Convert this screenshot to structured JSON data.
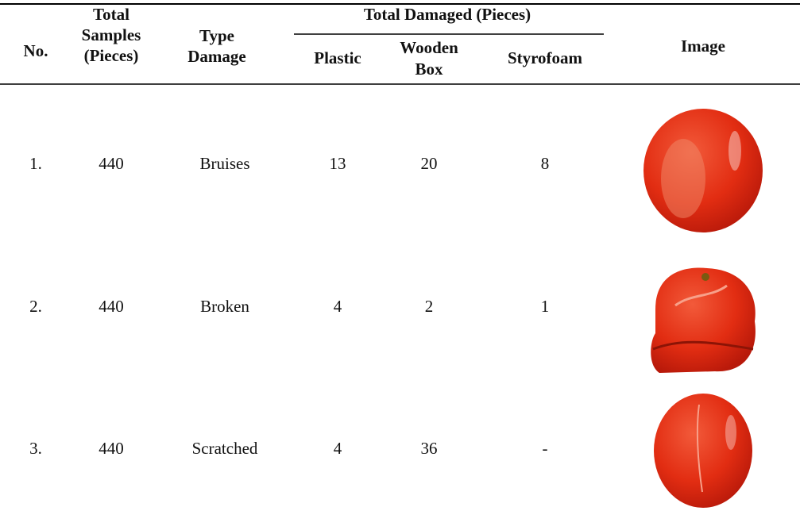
{
  "table": {
    "header": {
      "no": "No.",
      "total_samples": [
        "Total",
        "Samples",
        "(Pieces)"
      ],
      "type_damage": [
        "Type",
        "Damage"
      ],
      "total_damaged": "Total Damaged (Pieces)",
      "plastic": "Plastic",
      "wooden_box": [
        "Wooden",
        "Box"
      ],
      "styrofoam": "Styrofoam",
      "image": "Image"
    },
    "rows": [
      [
        "1.",
        "440",
        "Bruises",
        "13",
        "20",
        "8"
      ],
      [
        "2.",
        "440",
        "Broken",
        "4",
        "2",
        "1"
      ],
      [
        "3.",
        "440",
        "Scratched",
        "4",
        "36",
        "-"
      ]
    ]
  }
}
